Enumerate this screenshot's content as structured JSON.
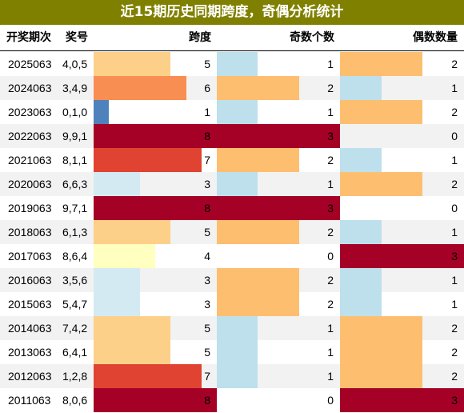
{
  "title": "近15期历史同期跨度，奇偶分析统计",
  "colors": {
    "title_bg": "#808000",
    "row_even": "#ffffff",
    "row_odd": "#f2f2f2"
  },
  "headers": {
    "period": "开奖期次",
    "numbers": "奖号",
    "span": "跨度",
    "odd": "奇数个数",
    "even": "偶数数量"
  },
  "rows": [
    {
      "period": "2025063",
      "numbers": "4,0,5",
      "span": 5,
      "odd": 1,
      "even": 2
    },
    {
      "period": "2024063",
      "numbers": "3,4,9",
      "span": 6,
      "odd": 2,
      "even": 1
    },
    {
      "period": "2023063",
      "numbers": "0,1,0",
      "span": 1,
      "odd": 1,
      "even": 2
    },
    {
      "period": "2022063",
      "numbers": "9,9,1",
      "span": 8,
      "odd": 3,
      "even": 0
    },
    {
      "period": "2021063",
      "numbers": "8,1,1",
      "span": 7,
      "odd": 2,
      "even": 1
    },
    {
      "period": "2020063",
      "numbers": "6,6,3",
      "span": 3,
      "odd": 1,
      "even": 2
    },
    {
      "period": "2019063",
      "numbers": "9,7,1",
      "span": 8,
      "odd": 3,
      "even": 0
    },
    {
      "period": "2018063",
      "numbers": "6,1,3",
      "span": 5,
      "odd": 2,
      "even": 1
    },
    {
      "period": "2017063",
      "numbers": "8,6,4",
      "span": 4,
      "odd": 0,
      "even": 3
    },
    {
      "period": "2016063",
      "numbers": "3,5,6",
      "span": 3,
      "odd": 2,
      "even": 1
    },
    {
      "period": "2015063",
      "numbers": "5,4,7",
      "span": 3,
      "odd": 2,
      "even": 1
    },
    {
      "period": "2014063",
      "numbers": "7,4,2",
      "span": 5,
      "odd": 1,
      "even": 2
    },
    {
      "period": "2013063",
      "numbers": "6,4,1",
      "span": 5,
      "odd": 1,
      "even": 2
    },
    {
      "period": "2012063",
      "numbers": "1,2,8",
      "span": 7,
      "odd": 1,
      "even": 2
    },
    {
      "period": "2011063",
      "numbers": "8,0,6",
      "span": 8,
      "odd": 0,
      "even": 3
    }
  ],
  "scale": {
    "span_max": 8,
    "count_max": 3
  },
  "span_colors": {
    "1": "#4f81bd",
    "3": "#d4eaf3",
    "4": "#ffffbf",
    "5": "#fdd08a",
    "6": "#f98e52",
    "7": "#e04332",
    "8": "#a50026"
  },
  "count_colors": {
    "0": "transparent",
    "1": "#bde0ec",
    "2": "#fdbf6f",
    "3": "#a50026"
  }
}
